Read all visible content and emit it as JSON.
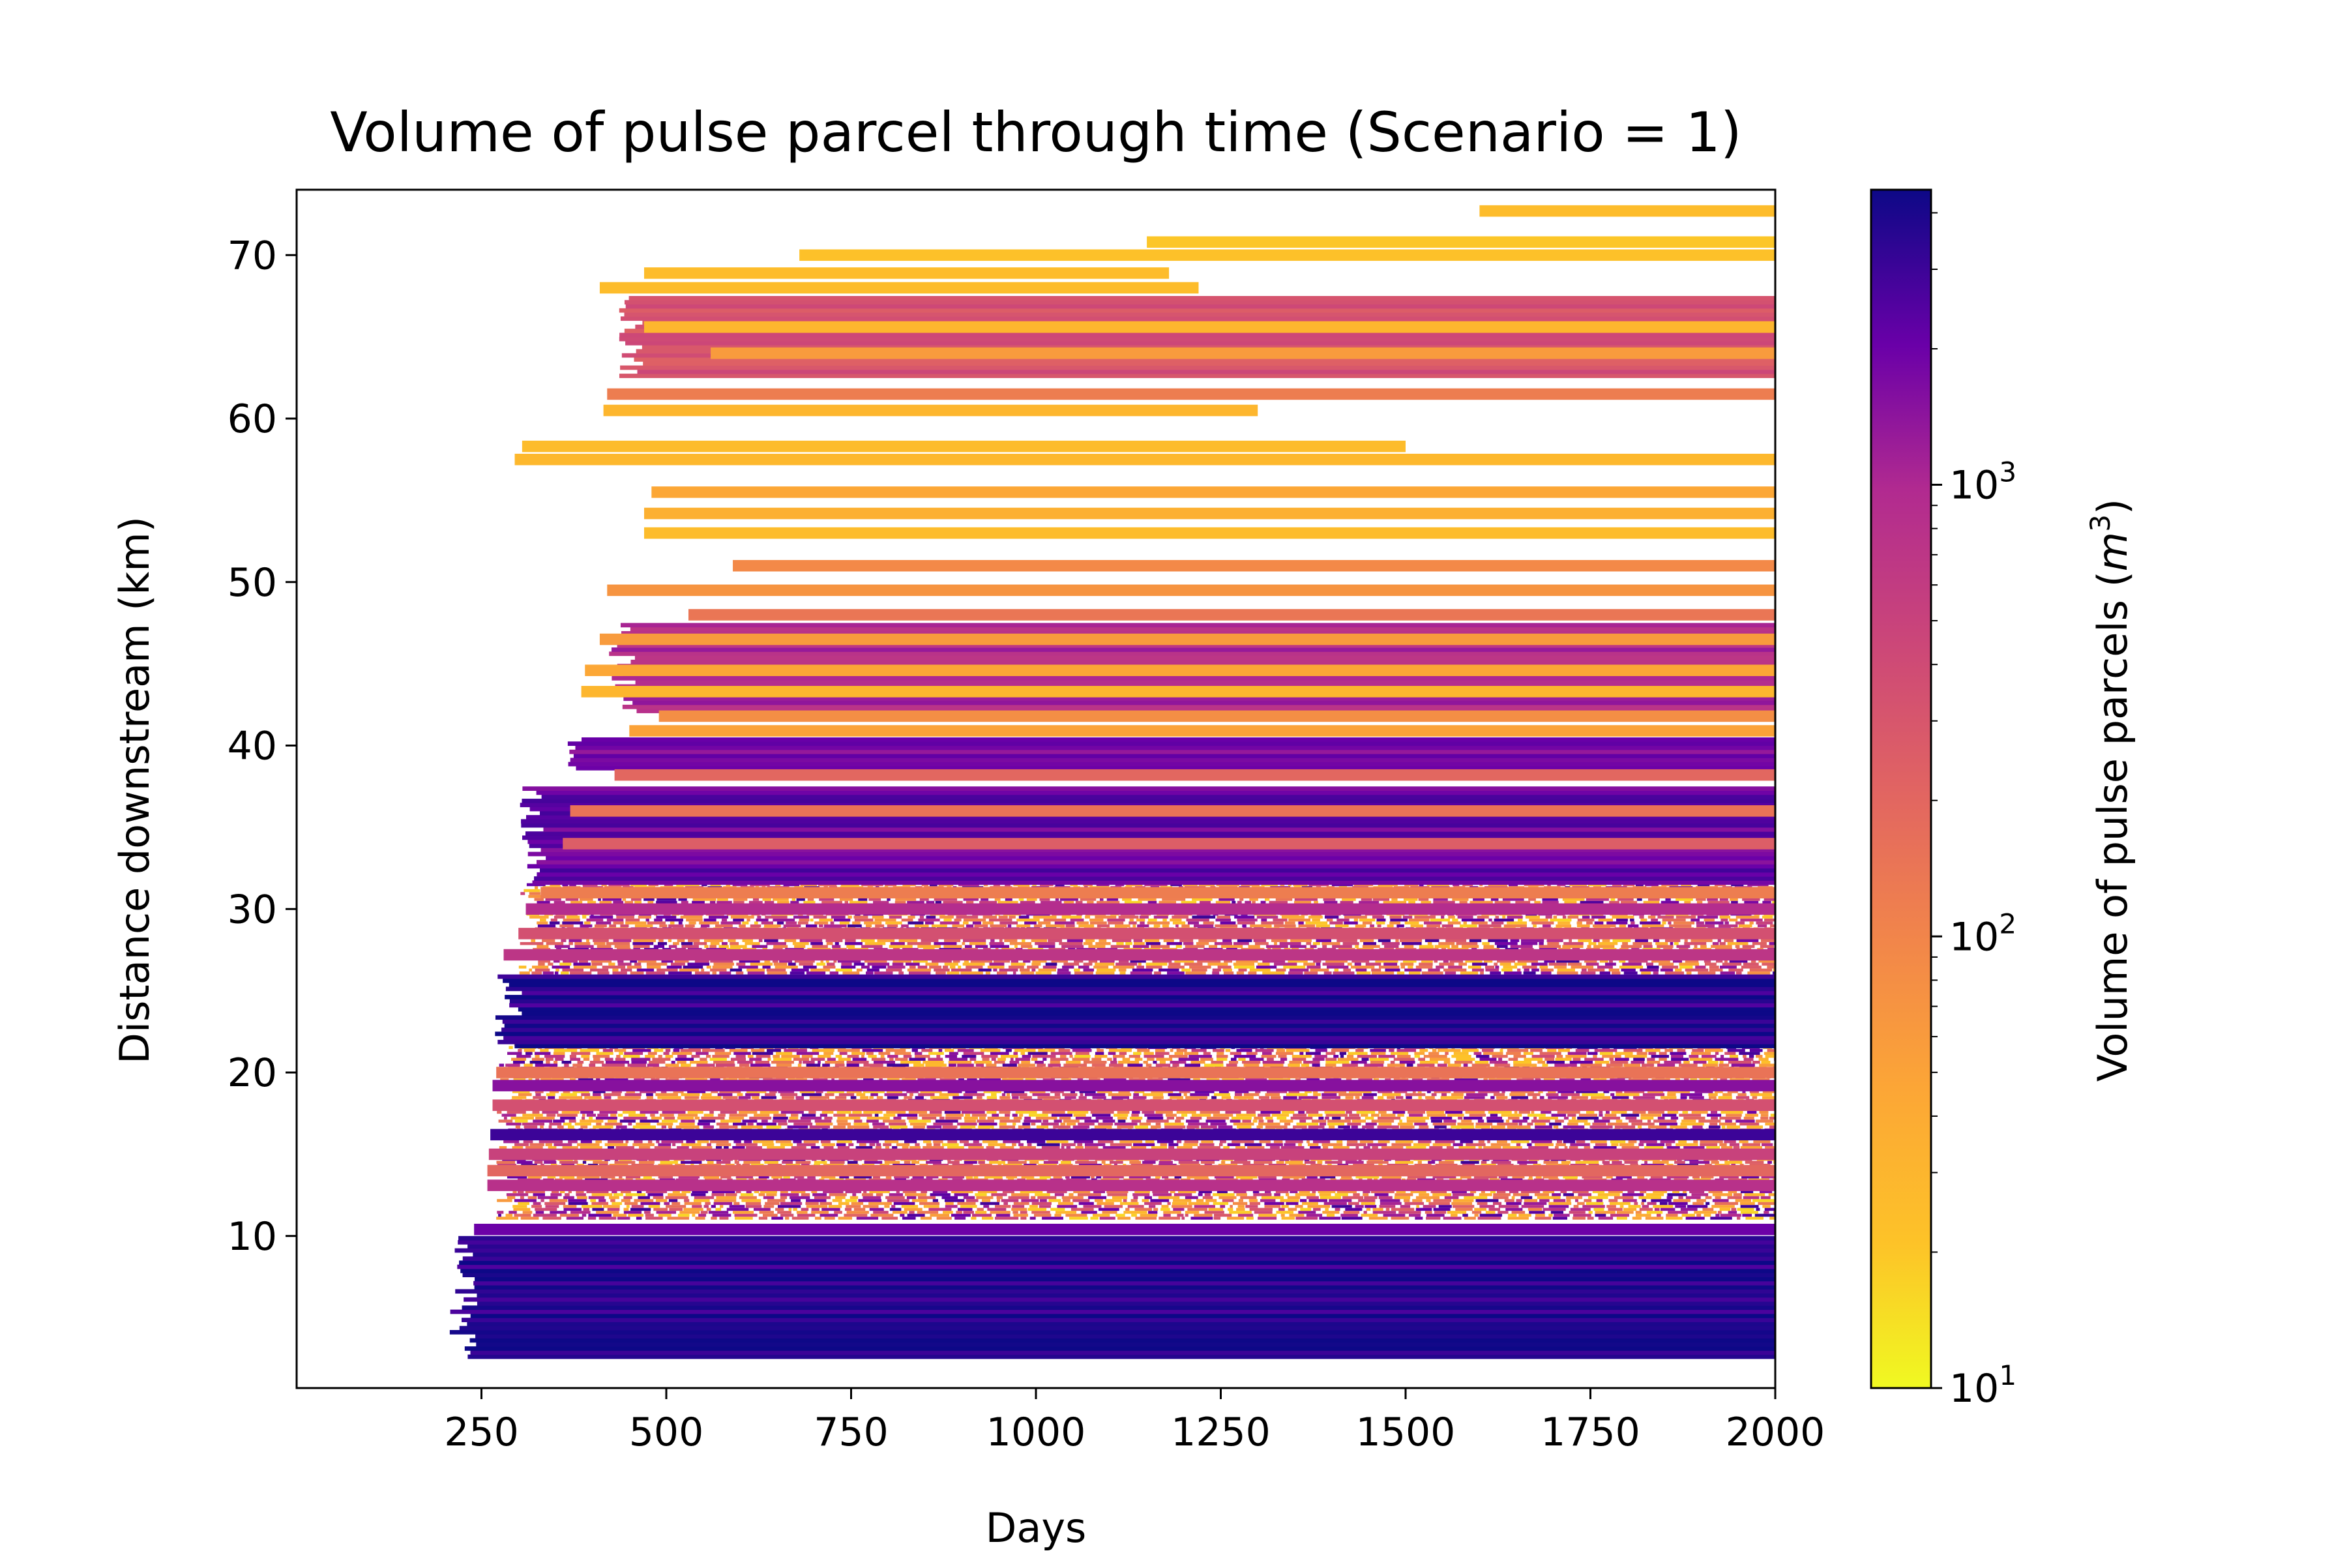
{
  "chart_data": {
    "type": "heatmap",
    "title": "Volume of pulse parcel through time (Scenario = 1)",
    "xlabel": "Days",
    "ylabel": "Distance downstream (km)",
    "xlim": [
      0,
      2000
    ],
    "ylim": [
      0.7,
      74
    ],
    "x_ticks": [
      {
        "value": 250,
        "label": "250"
      },
      {
        "value": 500,
        "label": "500"
      },
      {
        "value": 750,
        "label": "750"
      },
      {
        "value": 1000,
        "label": "1000"
      },
      {
        "value": 1250,
        "label": "1250"
      },
      {
        "value": 1500,
        "label": "1500"
      },
      {
        "value": 1750,
        "label": "1750"
      },
      {
        "value": 2000,
        "label": "2000"
      }
    ],
    "y_ticks": [
      {
        "value": 10,
        "label": "10"
      },
      {
        "value": 20,
        "label": "20"
      },
      {
        "value": 30,
        "label": "30"
      },
      {
        "value": 40,
        "label": "40"
      },
      {
        "value": 50,
        "label": "50"
      },
      {
        "value": 60,
        "label": "60"
      },
      {
        "value": 70,
        "label": "70"
      }
    ],
    "colorbar": {
      "label_prefix": "Volume of pulse parcels (",
      "label_unit_base": "m",
      "label_unit_exp": "3",
      "label_suffix": ")",
      "scale": "log",
      "colormap": "plasma_r",
      "range": [
        10,
        4500
      ],
      "ticks": [
        {
          "value": 10,
          "base": "10",
          "exp": "1"
        },
        {
          "value": 100,
          "base": "10",
          "exp": "2"
        },
        {
          "value": 1000,
          "base": "10",
          "exp": "3"
        }
      ]
    },
    "dense_bands": [
      {
        "y0": 2.5,
        "y1": 10.0,
        "x_start": 205,
        "volume": 4500
      },
      {
        "y0": 21.5,
        "y1": 26.0,
        "x_start": 265,
        "volume": 4500
      },
      {
        "y0": 31.5,
        "y1": 37.5,
        "x_start": 300,
        "volume": 2500
      },
      {
        "y0": 38.5,
        "y1": 40.5,
        "x_start": 360,
        "volume": 2000
      },
      {
        "y0": 42.0,
        "y1": 47.5,
        "x_start": 420,
        "volume": 1200
      },
      {
        "y0": 62.5,
        "y1": 67.5,
        "x_start": 430,
        "volume": 400
      }
    ],
    "sparse_parcels": [
      {
        "y": 72.7,
        "x_start": 1600,
        "x_end": 2000,
        "volume": 25
      },
      {
        "y": 70.8,
        "x_start": 1150,
        "x_end": 2000,
        "volume": 20
      },
      {
        "y": 70.0,
        "x_start": 680,
        "x_end": 2000,
        "volume": 22
      },
      {
        "y": 68.9,
        "x_start": 470,
        "x_end": 1180,
        "volume": 25
      },
      {
        "y": 68.0,
        "x_start": 410,
        "x_end": 1220,
        "volume": 25
      },
      {
        "y": 65.6,
        "x_start": 470,
        "x_end": 2000,
        "volume": 30
      },
      {
        "y": 64.0,
        "x_start": 560,
        "x_end": 2000,
        "volume": 60
      },
      {
        "y": 61.5,
        "x_start": 420,
        "x_end": 2000,
        "volume": 120
      },
      {
        "y": 60.5,
        "x_start": 415,
        "x_end": 1300,
        "volume": 30
      },
      {
        "y": 58.3,
        "x_start": 305,
        "x_end": 1500,
        "volume": 25
      },
      {
        "y": 57.5,
        "x_start": 295,
        "x_end": 2000,
        "volume": 28
      },
      {
        "y": 55.5,
        "x_start": 480,
        "x_end": 2000,
        "volume": 45
      },
      {
        "y": 54.2,
        "x_start": 470,
        "x_end": 2000,
        "volume": 35
      },
      {
        "y": 53.0,
        "x_start": 470,
        "x_end": 2000,
        "volume": 25
      },
      {
        "y": 51.0,
        "x_start": 590,
        "x_end": 2000,
        "volume": 90
      },
      {
        "y": 49.5,
        "x_start": 420,
        "x_end": 2000,
        "volume": 70
      },
      {
        "y": 48.0,
        "x_start": 530,
        "x_end": 2000,
        "volume": 140
      },
      {
        "y": 46.5,
        "x_start": 410,
        "x_end": 2000,
        "volume": 60
      },
      {
        "y": 44.6,
        "x_start": 390,
        "x_end": 2000,
        "volume": 45
      },
      {
        "y": 43.3,
        "x_start": 385,
        "x_end": 2000,
        "volume": 30
      },
      {
        "y": 41.8,
        "x_start": 490,
        "x_end": 2000,
        "volume": 80
      },
      {
        "y": 40.9,
        "x_start": 450,
        "x_end": 2000,
        "volume": 50
      },
      {
        "y": 38.2,
        "x_start": 430,
        "x_end": 2000,
        "volume": 200
      },
      {
        "y": 36.0,
        "x_start": 370,
        "x_end": 2000,
        "volume": 150
      },
      {
        "y": 34.0,
        "x_start": 360,
        "x_end": 2000,
        "volume": 250
      },
      {
        "y": 31.0,
        "x_start": 330,
        "x_end": 2000,
        "volume": 120
      },
      {
        "y": 30.0,
        "x_start": 310,
        "x_end": 2000,
        "volume": 900
      },
      {
        "y": 28.5,
        "x_start": 300,
        "x_end": 2000,
        "volume": 350
      },
      {
        "y": 27.2,
        "x_start": 280,
        "x_end": 2000,
        "volume": 700
      },
      {
        "y": 20.0,
        "x_start": 270,
        "x_end": 2000,
        "volume": 150
      },
      {
        "y": 19.2,
        "x_start": 265,
        "x_end": 2000,
        "volume": 1500
      },
      {
        "y": 18.0,
        "x_start": 265,
        "x_end": 2000,
        "volume": 350
      },
      {
        "y": 16.2,
        "x_start": 262,
        "x_end": 2000,
        "volume": 3000
      },
      {
        "y": 15.0,
        "x_start": 260,
        "x_end": 2000,
        "volume": 500
      },
      {
        "y": 14.0,
        "x_start": 258,
        "x_end": 2000,
        "volume": 200
      },
      {
        "y": 13.1,
        "x_start": 258,
        "x_end": 2000,
        "volume": 800
      },
      {
        "y": 10.4,
        "x_start": 240,
        "x_end": 2000,
        "volume": 2000
      }
    ],
    "speckle_zones": [
      {
        "y0": 11.0,
        "y1": 22.0,
        "x_start": 270
      },
      {
        "y0": 26.0,
        "y1": 31.5,
        "x_start": 300
      }
    ]
  }
}
